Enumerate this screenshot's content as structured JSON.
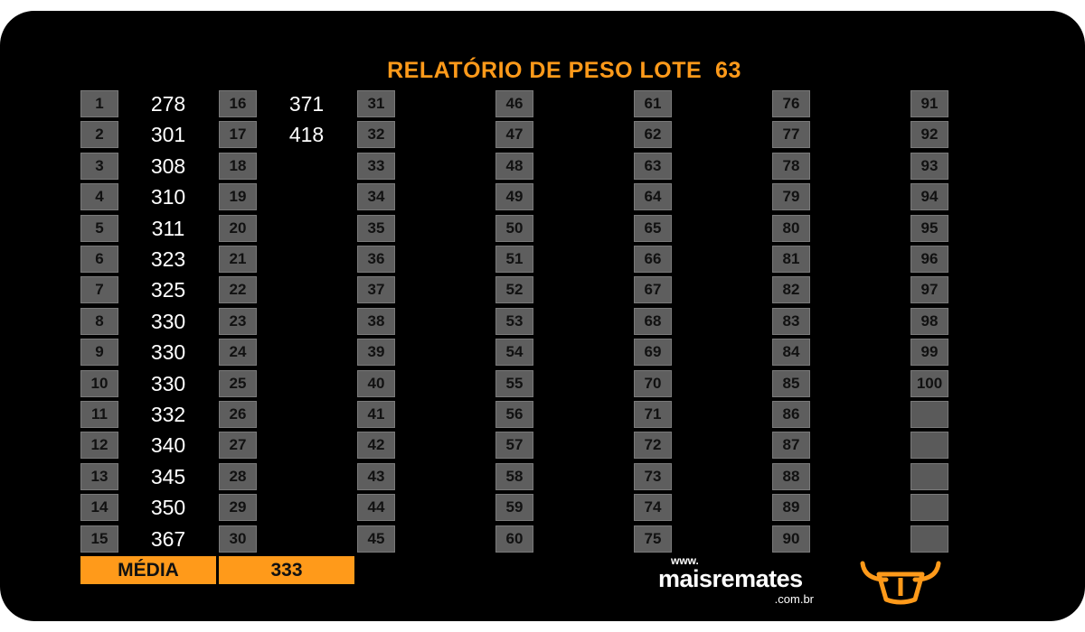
{
  "title": "RELATÓRIO DE PESO LOTE  63",
  "columns": [
    {
      "nums": [
        "1",
        "2",
        "3",
        "4",
        "5",
        "6",
        "7",
        "8",
        "9",
        "10",
        "11",
        "12",
        "13",
        "14",
        "15"
      ],
      "values": [
        "278",
        "301",
        "308",
        "310",
        "311",
        "323",
        "325",
        "330",
        "330",
        "330",
        "332",
        "340",
        "345",
        "350",
        "367"
      ]
    },
    {
      "nums": [
        "16",
        "17",
        "18",
        "19",
        "20",
        "21",
        "22",
        "23",
        "24",
        "25",
        "26",
        "27",
        "28",
        "29",
        "30"
      ],
      "values": [
        "371",
        "418",
        "",
        "",
        "",
        "",
        "",
        "",
        "",
        "",
        "",
        "",
        "",
        "",
        ""
      ]
    },
    {
      "nums": [
        "31",
        "32",
        "33",
        "34",
        "35",
        "36",
        "37",
        "38",
        "39",
        "40",
        "41",
        "42",
        "43",
        "44",
        "45"
      ],
      "values": []
    },
    {
      "nums": [
        "46",
        "47",
        "48",
        "49",
        "50",
        "51",
        "52",
        "53",
        "54",
        "55",
        "56",
        "57",
        "58",
        "59",
        "60"
      ],
      "values": []
    },
    {
      "nums": [
        "61",
        "62",
        "63",
        "64",
        "65",
        "66",
        "67",
        "68",
        "69",
        "70",
        "71",
        "72",
        "73",
        "74",
        "75"
      ],
      "values": []
    },
    {
      "nums": [
        "76",
        "77",
        "78",
        "79",
        "80",
        "81",
        "82",
        "83",
        "84",
        "85",
        "86",
        "87",
        "88",
        "89",
        "90"
      ],
      "values": []
    },
    {
      "nums": [
        "91",
        "92",
        "93",
        "94",
        "95",
        "96",
        "97",
        "98",
        "99",
        "100",
        "",
        "",
        "",
        "",
        ""
      ],
      "values": []
    }
  ],
  "average": {
    "label": "MÉDIA",
    "value": "333"
  },
  "logo": {
    "www": "www.",
    "name": "maisremates",
    "domain": ".com.br"
  },
  "colors": {
    "accent": "#ff9a1a",
    "cell": "#5e5e5e",
    "background": "#000000"
  },
  "icons": {
    "brand": "bull-head-icon"
  }
}
